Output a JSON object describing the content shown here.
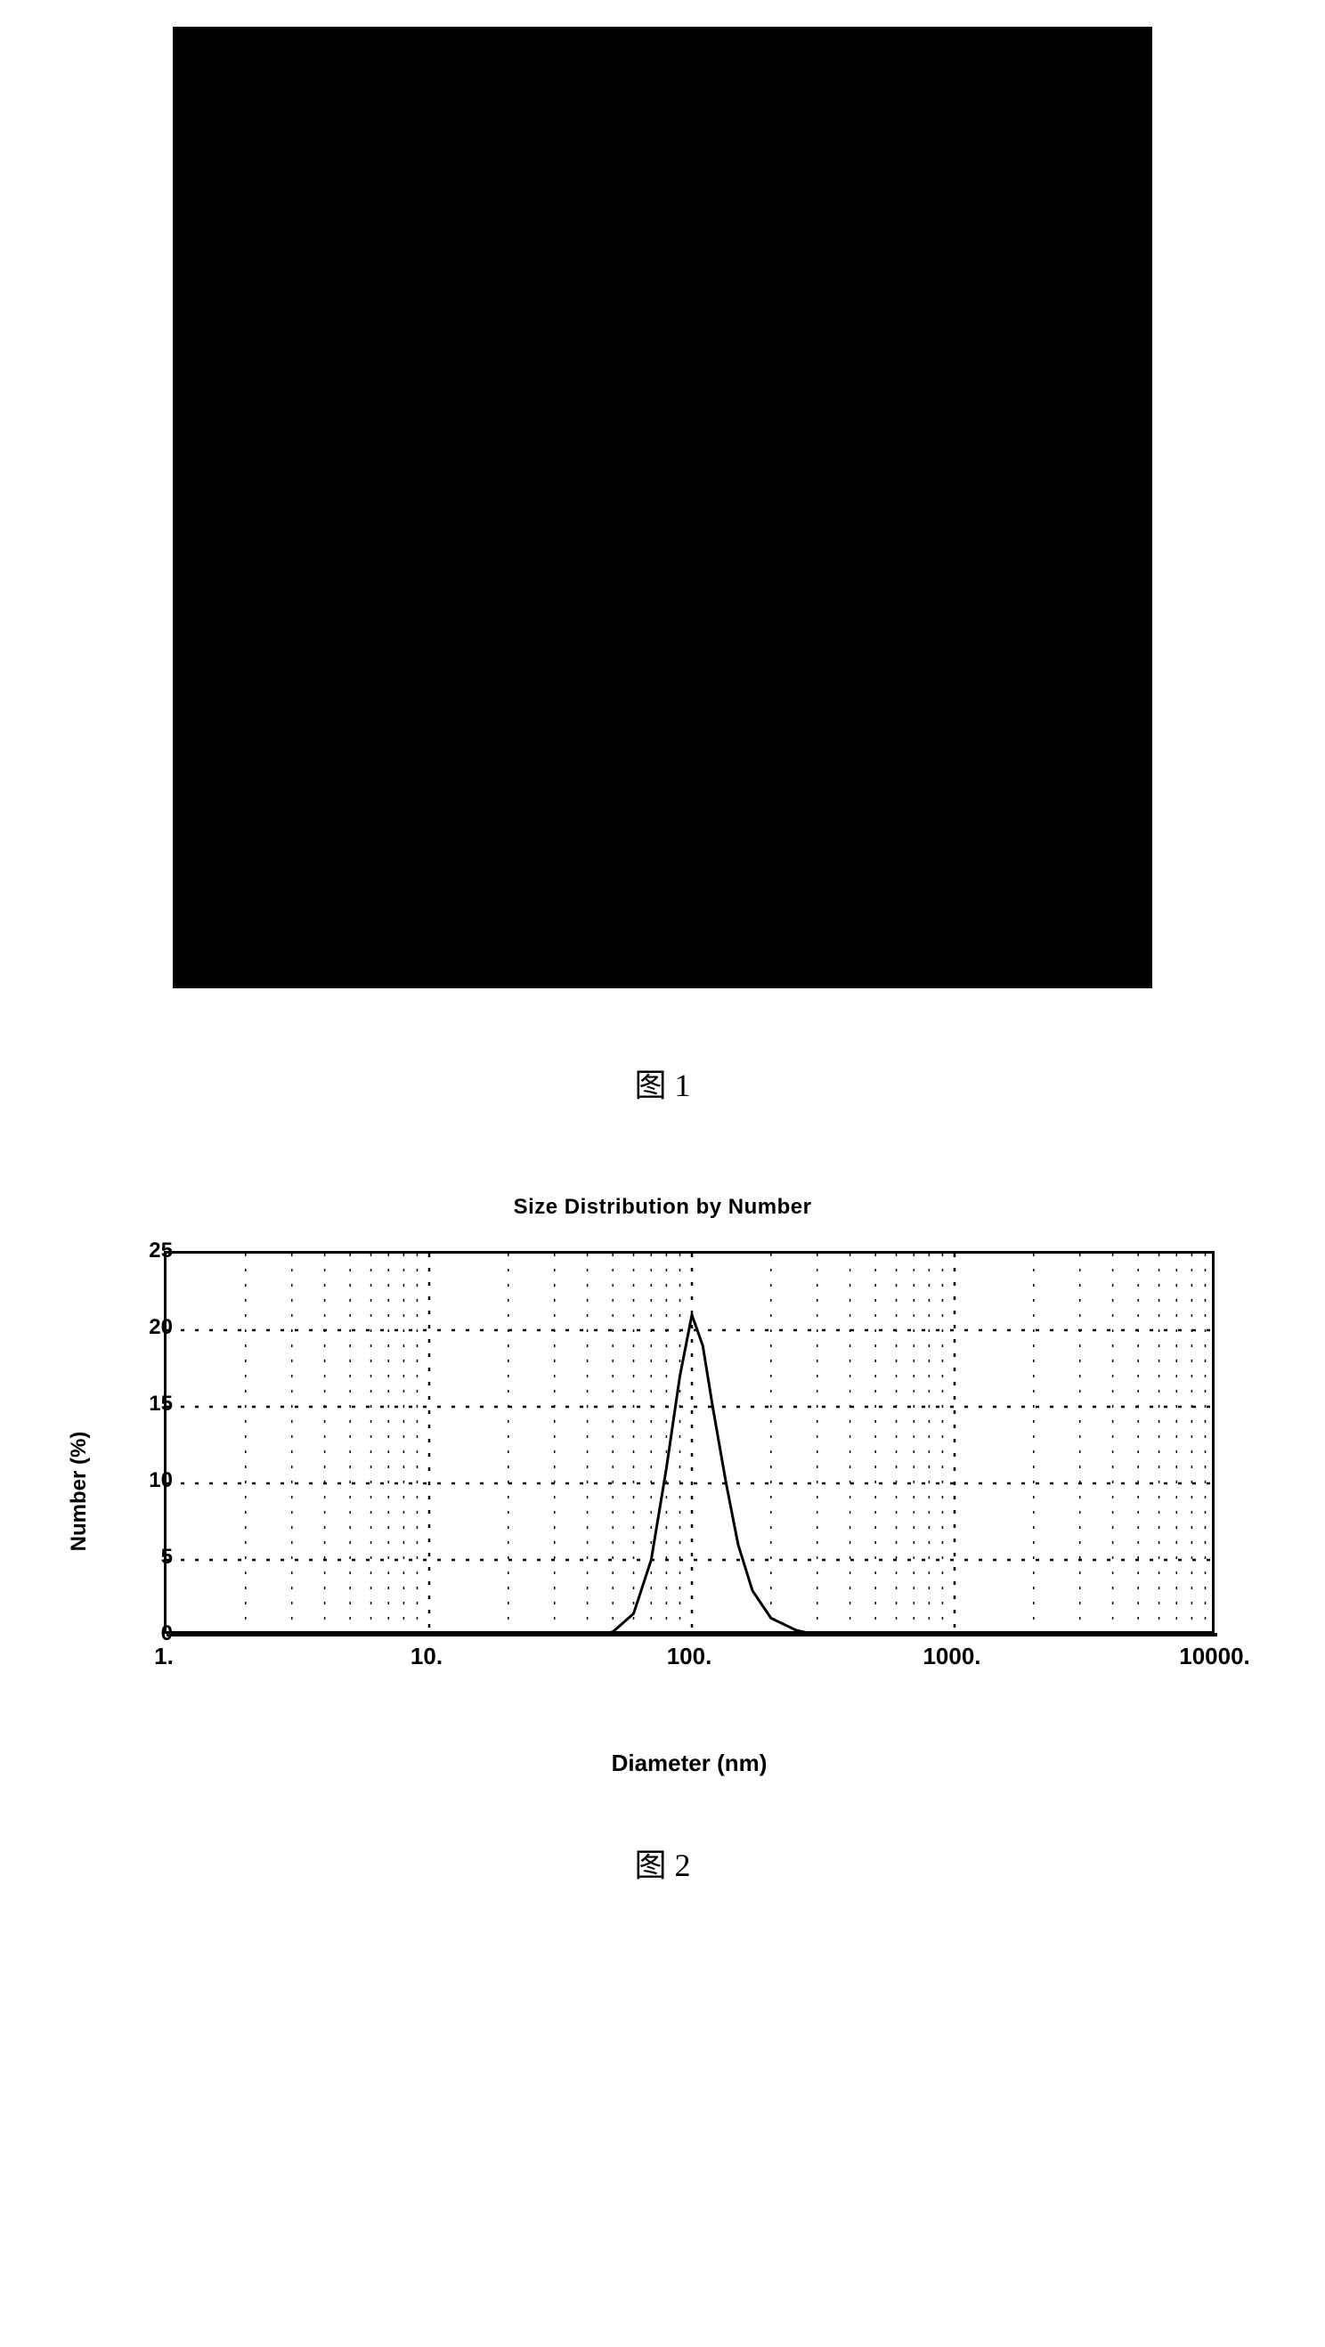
{
  "figure1": {
    "caption": "图 1",
    "background_color": "#000000",
    "border_color": "#000000"
  },
  "figure2": {
    "caption": "图 2",
    "chart": {
      "type": "line",
      "title": "Size Distribution by Number",
      "xlabel": "Diameter (nm)",
      "ylabel": "Number (%)",
      "xscale": "log",
      "xlim": [
        1,
        10000
      ],
      "ylim": [
        0,
        25
      ],
      "ytick_step": 5,
      "yticks": [
        0,
        5,
        10,
        15,
        20,
        25
      ],
      "xticks": [
        1,
        10,
        100,
        1000,
        10000
      ],
      "xtick_labels": [
        "1.",
        "10.",
        "100.",
        "1000.",
        "10000."
      ],
      "background_color": "#ffffff",
      "border_color": "#000000",
      "grid_color": "#000000",
      "grid_style": "dotted",
      "line_color": "#000000",
      "line_width": 3,
      "title_fontsize": 24,
      "label_fontsize": 26,
      "tick_fontsize": 24,
      "data_points": [
        {
          "x": 1,
          "y": 0
        },
        {
          "x": 40,
          "y": 0
        },
        {
          "x": 50,
          "y": 0.3
        },
        {
          "x": 60,
          "y": 1.5
        },
        {
          "x": 70,
          "y": 5
        },
        {
          "x": 80,
          "y": 11
        },
        {
          "x": 90,
          "y": 17
        },
        {
          "x": 100,
          "y": 21
        },
        {
          "x": 110,
          "y": 19
        },
        {
          "x": 120,
          "y": 15
        },
        {
          "x": 135,
          "y": 10
        },
        {
          "x": 150,
          "y": 6
        },
        {
          "x": 170,
          "y": 3
        },
        {
          "x": 200,
          "y": 1.2
        },
        {
          "x": 250,
          "y": 0.4
        },
        {
          "x": 300,
          "y": 0.1
        },
        {
          "x": 400,
          "y": 0
        },
        {
          "x": 10000,
          "y": 0
        }
      ]
    }
  }
}
